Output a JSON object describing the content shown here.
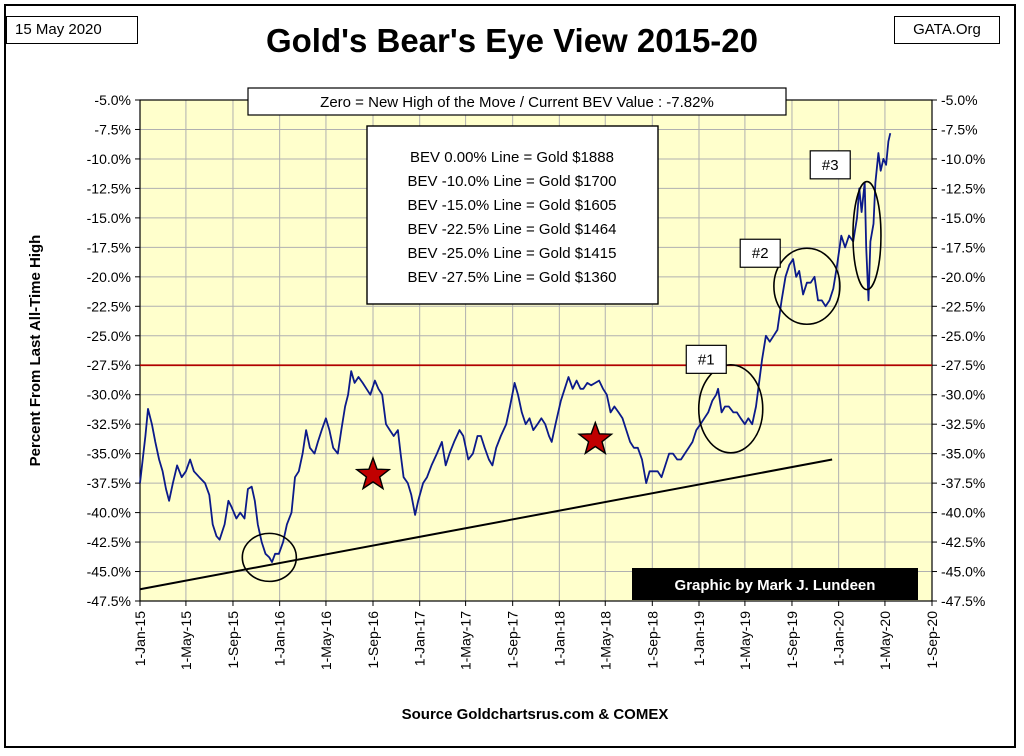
{
  "header": {
    "date_label": "15 May 2020",
    "site_label": "GATA.Org",
    "title": "Gold's Bear's Eye View 2015-20"
  },
  "footer": {
    "source": "Source Goldchartsrus.com & COMEX"
  },
  "colors": {
    "plot_bg": "#ffffcc",
    "grid": "#b0b0b0",
    "series": "#0b1a8a",
    "red_line": "#b00000",
    "star": "#c00000",
    "credit_bg": "#000000",
    "credit_text": "#ffffff"
  },
  "chart_data": {
    "type": "line",
    "title": "Gold's Bear's Eye View 2015-20",
    "ylabel": "Percent From Last All-Time High",
    "xlabel": "",
    "ylim": [
      -47.5,
      -5.0
    ],
    "xlim": [
      "2015-01-01",
      "2020-09-01"
    ],
    "yticks": [
      "-5.0%",
      "-7.5%",
      "-10.0%",
      "-12.5%",
      "-15.0%",
      "-17.5%",
      "-20.0%",
      "-22.5%",
      "-25.0%",
      "-27.5%",
      "-30.0%",
      "-32.5%",
      "-35.0%",
      "-37.5%",
      "-40.0%",
      "-42.5%",
      "-45.0%",
      "-47.5%"
    ],
    "ytick_values": [
      -5.0,
      -7.5,
      -10.0,
      -12.5,
      -15.0,
      -17.5,
      -20.0,
      -22.5,
      -25.0,
      -27.5,
      -30.0,
      -32.5,
      -35.0,
      -37.5,
      -40.0,
      -42.5,
      -45.0,
      -47.5
    ],
    "xticks": [
      "1-Jan-15",
      "1-May-15",
      "1-Sep-15",
      "1-Jan-16",
      "1-May-16",
      "1-Sep-16",
      "1-Jan-17",
      "1-May-17",
      "1-Sep-17",
      "1-Jan-18",
      "1-May-18",
      "1-Sep-18",
      "1-Jan-19",
      "1-May-19",
      "1-Sep-19",
      "1-Jan-20",
      "1-May-20",
      "1-Sep-20"
    ],
    "xtick_dates": [
      "2015-01-01",
      "2015-05-01",
      "2015-09-01",
      "2016-01-01",
      "2016-05-01",
      "2016-09-01",
      "2017-01-01",
      "2017-05-01",
      "2017-09-01",
      "2018-01-01",
      "2018-05-01",
      "2018-09-01",
      "2019-01-01",
      "2019-05-01",
      "2019-09-01",
      "2020-01-01",
      "2020-05-01",
      "2020-09-01"
    ],
    "grid": true,
    "series": [
      {
        "color": "#0b1a8a",
        "points": [
          [
            "2015-01-01",
            -37.5
          ],
          [
            "2015-01-08",
            -35.5
          ],
          [
            "2015-01-15",
            -33.5
          ],
          [
            "2015-01-22",
            -31.2
          ],
          [
            "2015-02-01",
            -32.5
          ],
          [
            "2015-02-10",
            -34.0
          ],
          [
            "2015-02-20",
            -35.5
          ],
          [
            "2015-03-01",
            -36.5
          ],
          [
            "2015-03-10",
            -38.0
          ],
          [
            "2015-03-18",
            -39.0
          ],
          [
            "2015-03-28",
            -37.5
          ],
          [
            "2015-04-08",
            -36.0
          ],
          [
            "2015-04-20",
            -37.0
          ],
          [
            "2015-05-01",
            -36.5
          ],
          [
            "2015-05-12",
            -35.5
          ],
          [
            "2015-05-22",
            -36.5
          ],
          [
            "2015-06-05",
            -37.0
          ],
          [
            "2015-06-20",
            -37.5
          ],
          [
            "2015-07-01",
            -38.5
          ],
          [
            "2015-07-10",
            -41.0
          ],
          [
            "2015-07-20",
            -42.0
          ],
          [
            "2015-07-28",
            -42.3
          ],
          [
            "2015-08-10",
            -41.0
          ],
          [
            "2015-08-20",
            -39.0
          ],
          [
            "2015-08-28",
            -39.5
          ],
          [
            "2015-09-10",
            -40.5
          ],
          [
            "2015-09-20",
            -40.0
          ],
          [
            "2015-10-01",
            -40.5
          ],
          [
            "2015-10-10",
            -38.0
          ],
          [
            "2015-10-20",
            -37.8
          ],
          [
            "2015-10-28",
            -39.0
          ],
          [
            "2015-11-05",
            -41.0
          ],
          [
            "2015-11-15",
            -42.5
          ],
          [
            "2015-11-25",
            -43.5
          ],
          [
            "2015-12-05",
            -43.8
          ],
          [
            "2015-12-12",
            -44.2
          ],
          [
            "2015-12-20",
            -43.5
          ],
          [
            "2015-12-30",
            -43.5
          ],
          [
            "2016-01-10",
            -42.5
          ],
          [
            "2016-01-20",
            -41.0
          ],
          [
            "2016-02-01",
            -40.0
          ],
          [
            "2016-02-10",
            -37.0
          ],
          [
            "2016-02-20",
            -36.5
          ],
          [
            "2016-03-01",
            -35.0
          ],
          [
            "2016-03-10",
            -33.0
          ],
          [
            "2016-03-20",
            -34.5
          ],
          [
            "2016-04-01",
            -35.0
          ],
          [
            "2016-04-10",
            -34.0
          ],
          [
            "2016-04-20",
            -33.0
          ],
          [
            "2016-05-01",
            -32.0
          ],
          [
            "2016-05-10",
            -33.0
          ],
          [
            "2016-05-20",
            -34.5
          ],
          [
            "2016-06-01",
            -35.0
          ],
          [
            "2016-06-10",
            -33.0
          ],
          [
            "2016-06-20",
            -31.0
          ],
          [
            "2016-06-28",
            -30.0
          ],
          [
            "2016-07-06",
            -28.0
          ],
          [
            "2016-07-15",
            -29.0
          ],
          [
            "2016-07-25",
            -28.5
          ],
          [
            "2016-08-05",
            -29.0
          ],
          [
            "2016-08-15",
            -29.5
          ],
          [
            "2016-08-25",
            -30.0
          ],
          [
            "2016-09-06",
            -28.8
          ],
          [
            "2016-09-15",
            -29.5
          ],
          [
            "2016-09-25",
            -30.0
          ],
          [
            "2016-10-05",
            -32.5
          ],
          [
            "2016-10-15",
            -33.0
          ],
          [
            "2016-10-25",
            -33.5
          ],
          [
            "2016-11-05",
            -33.0
          ],
          [
            "2016-11-12",
            -35.0
          ],
          [
            "2016-11-20",
            -37.0
          ],
          [
            "2016-12-01",
            -37.5
          ],
          [
            "2016-12-10",
            -38.5
          ],
          [
            "2016-12-20",
            -40.2
          ],
          [
            "2016-12-28",
            -39.0
          ],
          [
            "2017-01-10",
            -37.5
          ],
          [
            "2017-01-20",
            -37.0
          ],
          [
            "2017-02-01",
            -36.0
          ],
          [
            "2017-02-15",
            -35.0
          ],
          [
            "2017-02-28",
            -34.0
          ],
          [
            "2017-03-10",
            -36.0
          ],
          [
            "2017-03-20",
            -35.0
          ],
          [
            "2017-04-01",
            -34.0
          ],
          [
            "2017-04-15",
            -33.0
          ],
          [
            "2017-04-25",
            -33.5
          ],
          [
            "2017-05-08",
            -35.5
          ],
          [
            "2017-05-20",
            -35.0
          ],
          [
            "2017-06-01",
            -33.5
          ],
          [
            "2017-06-10",
            -33.5
          ],
          [
            "2017-06-20",
            -34.5
          ],
          [
            "2017-07-01",
            -35.5
          ],
          [
            "2017-07-10",
            -36.0
          ],
          [
            "2017-07-20",
            -34.5
          ],
          [
            "2017-08-01",
            -33.5
          ],
          [
            "2017-08-15",
            -32.5
          ],
          [
            "2017-08-25",
            -31.0
          ],
          [
            "2017-09-06",
            -29.0
          ],
          [
            "2017-09-15",
            -30.0
          ],
          [
            "2017-09-25",
            -31.5
          ],
          [
            "2017-10-05",
            -32.5
          ],
          [
            "2017-10-15",
            -32.0
          ],
          [
            "2017-10-25",
            -33.0
          ],
          [
            "2017-11-05",
            -32.5
          ],
          [
            "2017-11-15",
            -32.0
          ],
          [
            "2017-11-25",
            -32.5
          ],
          [
            "2017-12-05",
            -33.5
          ],
          [
            "2017-12-12",
            -34.0
          ],
          [
            "2017-12-22",
            -32.5
          ],
          [
            "2018-01-05",
            -30.5
          ],
          [
            "2018-01-15",
            -29.5
          ],
          [
            "2018-01-25",
            -28.5
          ],
          [
            "2018-02-05",
            -29.5
          ],
          [
            "2018-02-15",
            -28.8
          ],
          [
            "2018-02-25",
            -29.5
          ],
          [
            "2018-03-05",
            -29.5
          ],
          [
            "2018-03-15",
            -29.0
          ],
          [
            "2018-03-25",
            -29.2
          ],
          [
            "2018-04-05",
            -29.0
          ],
          [
            "2018-04-15",
            -28.8
          ],
          [
            "2018-04-25",
            -29.5
          ],
          [
            "2018-05-05",
            -30.0
          ],
          [
            "2018-05-15",
            -31.5
          ],
          [
            "2018-05-25",
            -31.0
          ],
          [
            "2018-06-05",
            -31.5
          ],
          [
            "2018-06-15",
            -32.0
          ],
          [
            "2018-06-25",
            -33.0
          ],
          [
            "2018-07-05",
            -34.0
          ],
          [
            "2018-07-15",
            -34.5
          ],
          [
            "2018-07-25",
            -34.5
          ],
          [
            "2018-08-05",
            -35.5
          ],
          [
            "2018-08-16",
            -37.5
          ],
          [
            "2018-08-25",
            -36.5
          ],
          [
            "2018-09-05",
            -36.5
          ],
          [
            "2018-09-15",
            -36.5
          ],
          [
            "2018-09-25",
            -37.0
          ],
          [
            "2018-10-05",
            -36.0
          ],
          [
            "2018-10-15",
            -35.0
          ],
          [
            "2018-10-25",
            -35.0
          ],
          [
            "2018-11-05",
            -35.5
          ],
          [
            "2018-11-15",
            -35.5
          ],
          [
            "2018-11-25",
            -35.0
          ],
          [
            "2018-12-05",
            -34.5
          ],
          [
            "2018-12-15",
            -34.0
          ],
          [
            "2018-12-25",
            -33.0
          ],
          [
            "2019-01-05",
            -32.5
          ],
          [
            "2019-01-15",
            -32.0
          ],
          [
            "2019-01-25",
            -31.5
          ],
          [
            "2019-02-05",
            -30.5
          ],
          [
            "2019-02-15",
            -30.0
          ],
          [
            "2019-02-20",
            -29.5
          ],
          [
            "2019-03-01",
            -31.5
          ],
          [
            "2019-03-10",
            -31.0
          ],
          [
            "2019-03-20",
            -31.0
          ],
          [
            "2019-04-01",
            -31.5
          ],
          [
            "2019-04-10",
            -31.5
          ],
          [
            "2019-04-20",
            -32.0
          ],
          [
            "2019-05-01",
            -32.5
          ],
          [
            "2019-05-10",
            -32.0
          ],
          [
            "2019-05-20",
            -32.5
          ],
          [
            "2019-05-30",
            -31.0
          ],
          [
            "2019-06-05",
            -29.5
          ],
          [
            "2019-06-15",
            -27.0
          ],
          [
            "2019-06-25",
            -25.0
          ],
          [
            "2019-07-05",
            -25.5
          ],
          [
            "2019-07-15",
            -25.0
          ],
          [
            "2019-07-25",
            -24.5
          ],
          [
            "2019-08-05",
            -22.0
          ],
          [
            "2019-08-15",
            -20.0
          ],
          [
            "2019-08-25",
            -19.0
          ],
          [
            "2019-09-04",
            -18.5
          ],
          [
            "2019-09-12",
            -20.0
          ],
          [
            "2019-09-20",
            -19.5
          ],
          [
            "2019-09-30",
            -21.5
          ],
          [
            "2019-10-10",
            -20.5
          ],
          [
            "2019-10-20",
            -20.5
          ],
          [
            "2019-10-30",
            -20.0
          ],
          [
            "2019-11-08",
            -22.0
          ],
          [
            "2019-11-18",
            -22.0
          ],
          [
            "2019-11-28",
            -22.5
          ],
          [
            "2019-12-08",
            -22.0
          ],
          [
            "2019-12-18",
            -21.0
          ],
          [
            "2019-12-28",
            -19.0
          ],
          [
            "2020-01-08",
            -16.5
          ],
          [
            "2020-01-18",
            -17.5
          ],
          [
            "2020-01-28",
            -16.5
          ],
          [
            "2020-02-08",
            -17.0
          ],
          [
            "2020-02-18",
            -15.0
          ],
          [
            "2020-02-24",
            -12.5
          ],
          [
            "2020-03-01",
            -14.5
          ],
          [
            "2020-03-09",
            -12.0
          ],
          [
            "2020-03-13",
            -17.5
          ],
          [
            "2020-03-19",
            -22.0
          ],
          [
            "2020-03-24",
            -17.0
          ],
          [
            "2020-04-01",
            -15.5
          ],
          [
            "2020-04-06",
            -12.0
          ],
          [
            "2020-04-14",
            -9.5
          ],
          [
            "2020-04-20",
            -11.0
          ],
          [
            "2020-04-27",
            -10.0
          ],
          [
            "2020-05-04",
            -10.5
          ],
          [
            "2020-05-10",
            -8.5
          ],
          [
            "2020-05-15",
            -7.82
          ]
        ]
      }
    ],
    "annotations": {
      "red_hline": {
        "y": -27.5,
        "color": "#b00000"
      },
      "trend_line": {
        "from": [
          "2015-01-01",
          -46.5
        ],
        "to": [
          "2019-12-15",
          -35.5
        ]
      },
      "header_box": "Zero = New High of the Move / Current  BEV Value : -7.82%",
      "bev_table": [
        "BEV 0.00% Line = Gold $1888",
        "BEV -10.0% Line = Gold $1700",
        "BEV -15.0% Line = Gold $1605",
        "BEV -22.5% Line = Gold $1464",
        "BEV -25.0% Line = Gold $1415",
        "BEV -27.5% Line = Gold $1360"
      ],
      "credit": "Graphic by Mark J. Lundeen",
      "labels": [
        {
          "text": "#1",
          "date": "2019-01-20",
          "y": -27.0
        },
        {
          "text": "#2",
          "date": "2019-06-10",
          "y": -18.0
        },
        {
          "text": "#3",
          "date": "2019-12-10",
          "y": -10.5
        }
      ],
      "ellipses": [
        {
          "date": "2015-12-05",
          "y": -43.8
        },
        {
          "date": "2019-03-25",
          "y": -31.2
        },
        {
          "date": "2019-10-10",
          "y": -20.8
        },
        {
          "date": "2020-03-15",
          "y": -16.5
        }
      ],
      "stars": [
        {
          "date": "2016-09-01",
          "y": -36.8
        },
        {
          "date": "2018-04-05",
          "y": -33.8
        }
      ]
    }
  }
}
